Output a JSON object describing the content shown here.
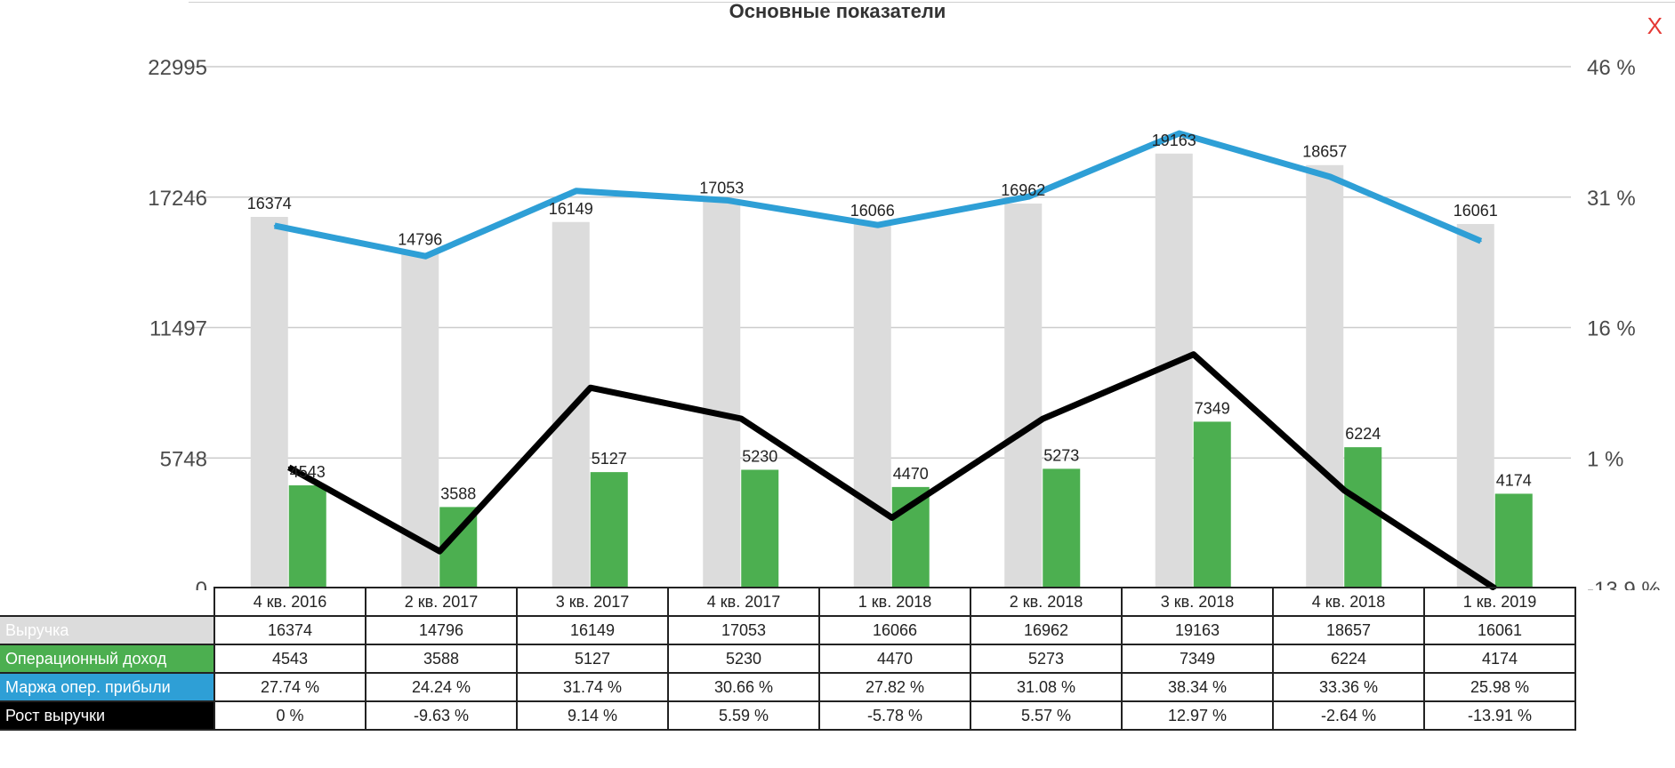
{
  "title": "Основные показатели",
  "close_label": "X",
  "colors": {
    "revenue": "#dcdcdc",
    "op_income": "#4caf50",
    "margin": "#2e9fd6",
    "growth": "#000000",
    "grid": "#cccccc"
  },
  "chart_data": {
    "type": "bar",
    "categories": [
      "4 кв. 2016",
      "2 кв. 2017",
      "3 кв. 2017",
      "4 кв. 2017",
      "1 кв. 2018",
      "2 кв. 2018",
      "3 кв. 2018",
      "4 кв. 2018",
      "1 кв. 2019"
    ],
    "y_left": {
      "ticks": [
        "0",
        "5748",
        "11497",
        "17246",
        "22995"
      ],
      "range": [
        0,
        22995
      ]
    },
    "y_right": {
      "ticks": [
        "-13.9 %",
        "1 %",
        "16 %",
        "31 %",
        "46 %"
      ],
      "range": [
        -13.9,
        46
      ]
    },
    "series": [
      {
        "name": "Выручка",
        "type": "bar",
        "axis": "left",
        "values": [
          16374,
          14796,
          16149,
          17053,
          16066,
          16962,
          19163,
          18657,
          16061
        ],
        "display": [
          "16374",
          "14796",
          "16149",
          "17053",
          "16066",
          "16962",
          "19163",
          "18657",
          "16061"
        ]
      },
      {
        "name": "Операционный доход",
        "type": "bar",
        "axis": "left",
        "values": [
          4543,
          3588,
          5127,
          5230,
          4470,
          5273,
          7349,
          6224,
          4174
        ],
        "display": [
          "4543",
          "3588",
          "5127",
          "5230",
          "4470",
          "5273",
          "7349",
          "6224",
          "4174"
        ]
      },
      {
        "name": "Маржа опер. прибыли",
        "type": "line",
        "axis": "right",
        "values": [
          27.74,
          24.24,
          31.74,
          30.66,
          27.82,
          31.08,
          38.34,
          33.36,
          25.98
        ],
        "display": [
          "27.74 %",
          "24.24 %",
          "31.74 %",
          "30.66 %",
          "27.82 %",
          "31.08 %",
          "38.34 %",
          "33.36 %",
          "25.98 %"
        ]
      },
      {
        "name": "Рост выручки",
        "type": "line",
        "axis": "right",
        "values": [
          0,
          -9.63,
          9.14,
          5.59,
          -5.78,
          5.57,
          12.97,
          -2.64,
          -13.91
        ],
        "display": [
          "0 %",
          "-9.63 %",
          "9.14 %",
          "5.59 %",
          "-5.78 %",
          "5.57 %",
          "12.97 %",
          "-2.64 %",
          "-13.91 %"
        ]
      }
    ],
    "grid": true
  }
}
